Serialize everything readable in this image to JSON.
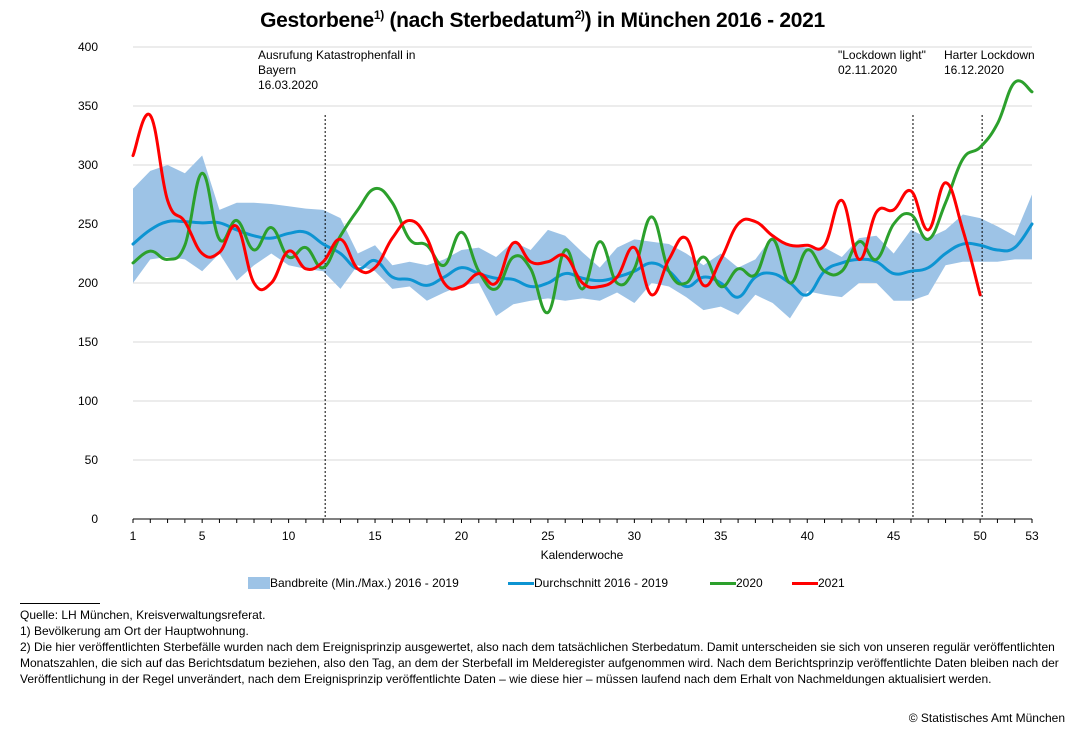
{
  "title": {
    "main": "Gestorbene",
    "sup1": "1)",
    "mid": " (nach Sterbedatum",
    "sup2": "2)",
    "end": ") in München 2016 - 2021"
  },
  "chart_data": {
    "type": "line",
    "title": "Gestorbene (nach Sterbedatum) in München 2016 - 2021",
    "xlabel": "Kalenderwoche",
    "ylabel": "",
    "xlim": [
      1,
      53
    ],
    "ylim": [
      0,
      400
    ],
    "x_ticks": [
      1,
      5,
      10,
      15,
      20,
      25,
      30,
      35,
      40,
      45,
      50,
      53
    ],
    "y_ticks": [
      0,
      50,
      100,
      150,
      200,
      250,
      300,
      350,
      400
    ],
    "grid": "horizontal",
    "legend_position": "bottom",
    "x": [
      1,
      2,
      3,
      4,
      5,
      6,
      7,
      8,
      9,
      10,
      11,
      12,
      13,
      14,
      15,
      16,
      17,
      18,
      19,
      20,
      21,
      22,
      23,
      24,
      25,
      26,
      27,
      28,
      29,
      30,
      31,
      32,
      33,
      34,
      35,
      36,
      37,
      38,
      39,
      40,
      41,
      42,
      43,
      44,
      45,
      46,
      47,
      48,
      49,
      50,
      51,
      52,
      53
    ],
    "band": {
      "name": "Bandbreite (Min./Max.) 2016 - 2019",
      "color": "#9dc3e6",
      "min": [
        200,
        220,
        222,
        220,
        210,
        225,
        202,
        215,
        225,
        215,
        212,
        210,
        195,
        215,
        210,
        195,
        197,
        185,
        192,
        198,
        200,
        172,
        182,
        185,
        187,
        185,
        187,
        185,
        192,
        183,
        200,
        197,
        188,
        177,
        180,
        173,
        190,
        183,
        170,
        193,
        190,
        188,
        200,
        200,
        185,
        185,
        190,
        215,
        218,
        218,
        218,
        220,
        220
      ],
      "max": [
        280,
        295,
        300,
        293,
        308,
        262,
        268,
        268,
        267,
        265,
        263,
        262,
        255,
        225,
        232,
        215,
        218,
        215,
        220,
        228,
        230,
        222,
        235,
        228,
        245,
        240,
        226,
        213,
        230,
        237,
        235,
        233,
        225,
        215,
        225,
        213,
        220,
        240,
        232,
        230,
        230,
        222,
        238,
        240,
        225,
        245,
        238,
        245,
        258,
        255,
        248,
        240,
        275
      ]
    },
    "series": [
      {
        "name": "Durchschnitt 2016 - 2019",
        "color": "#0d94d2",
        "values": [
          233,
          245,
          252,
          252,
          251,
          251,
          245,
          240,
          238,
          242,
          243,
          233,
          225,
          212,
          219,
          205,
          203,
          198,
          205,
          213,
          208,
          204,
          203,
          197,
          200,
          208,
          204,
          202,
          205,
          210,
          217,
          210,
          197,
          205,
          200,
          188,
          205,
          208,
          200,
          190,
          210,
          217,
          220,
          218,
          208,
          210,
          213,
          225,
          233,
          232,
          228,
          230,
          250
        ]
      },
      {
        "name": "2020",
        "color": "#2ca02c",
        "values": [
          217,
          227,
          220,
          232,
          293,
          237,
          253,
          228,
          247,
          222,
          230,
          213,
          240,
          262,
          280,
          268,
          237,
          232,
          215,
          243,
          210,
          195,
          222,
          212,
          175,
          228,
          195,
          235,
          200,
          212,
          256,
          210,
          200,
          222,
          197,
          212,
          207,
          237,
          200,
          228,
          210,
          210,
          235,
          220,
          250,
          258,
          237,
          268,
          305,
          315,
          335,
          370,
          362
        ]
      },
      {
        "name": "2021",
        "color": "#ff0000",
        "values": [
          308,
          342,
          270,
          252,
          225,
          226,
          248,
          200,
          200,
          227,
          212,
          218,
          237,
          212,
          213,
          238,
          253,
          238,
          200,
          197,
          208,
          200,
          234,
          218,
          218,
          223,
          200,
          197,
          205,
          230,
          190,
          220,
          238,
          198,
          220,
          250,
          252,
          240,
          232,
          232,
          232,
          270,
          220,
          260,
          262,
          278,
          245,
          285,
          245,
          190
        ]
      }
    ],
    "annotations": [
      {
        "week": 12,
        "lines": [
          "Ausrufung Katastrophenfall in",
          "Bayern",
          "16.03.2020"
        ]
      },
      {
        "week": 46,
        "lines": [
          "\"Lockdown light\"",
          "02.11.2020"
        ]
      },
      {
        "week": 50,
        "lines": [
          "Harter Lockdown",
          "16.12.2020"
        ]
      }
    ]
  },
  "legend": [
    {
      "label": "Bandbreite (Min./Max.) 2016 - 2019",
      "kind": "band",
      "color": "#9dc3e6"
    },
    {
      "label": "Durchschnitt 2016 - 2019",
      "kind": "line",
      "color": "#0d94d2"
    },
    {
      "label": "2020",
      "kind": "line",
      "color": "#2ca02c"
    },
    {
      "label": "2021",
      "kind": "line",
      "color": "#ff0000"
    }
  ],
  "footnotes": {
    "source": "Quelle: LH München, Kreisverwaltungsreferat.",
    "note1": "1) Bevölkerung am Ort der Hauptwohnung.",
    "note2": "2) Die hier veröffentlichten Sterbefälle wurden nach dem Ereignisprinzip ausgewertet, also nach dem tatsächlichen Sterbedatum. Damit unterscheiden sie sich von unseren regulär veröffentlichten Monatszahlen, die sich auf das Berichtsdatum beziehen, also den Tag, an dem der Sterbefall im Melderegister aufgenommen wird. Nach dem Berichtsprinzip veröffentlichte Daten bleiben nach der Veröffentlichung in der Regel unverändert, nach dem Ereignisprinzip veröffentlichte Daten – wie diese hier – müssen laufend nach dem Erhalt von Nachmeldungen aktualisiert werden."
  },
  "copyright": "© Statistisches Amt München"
}
